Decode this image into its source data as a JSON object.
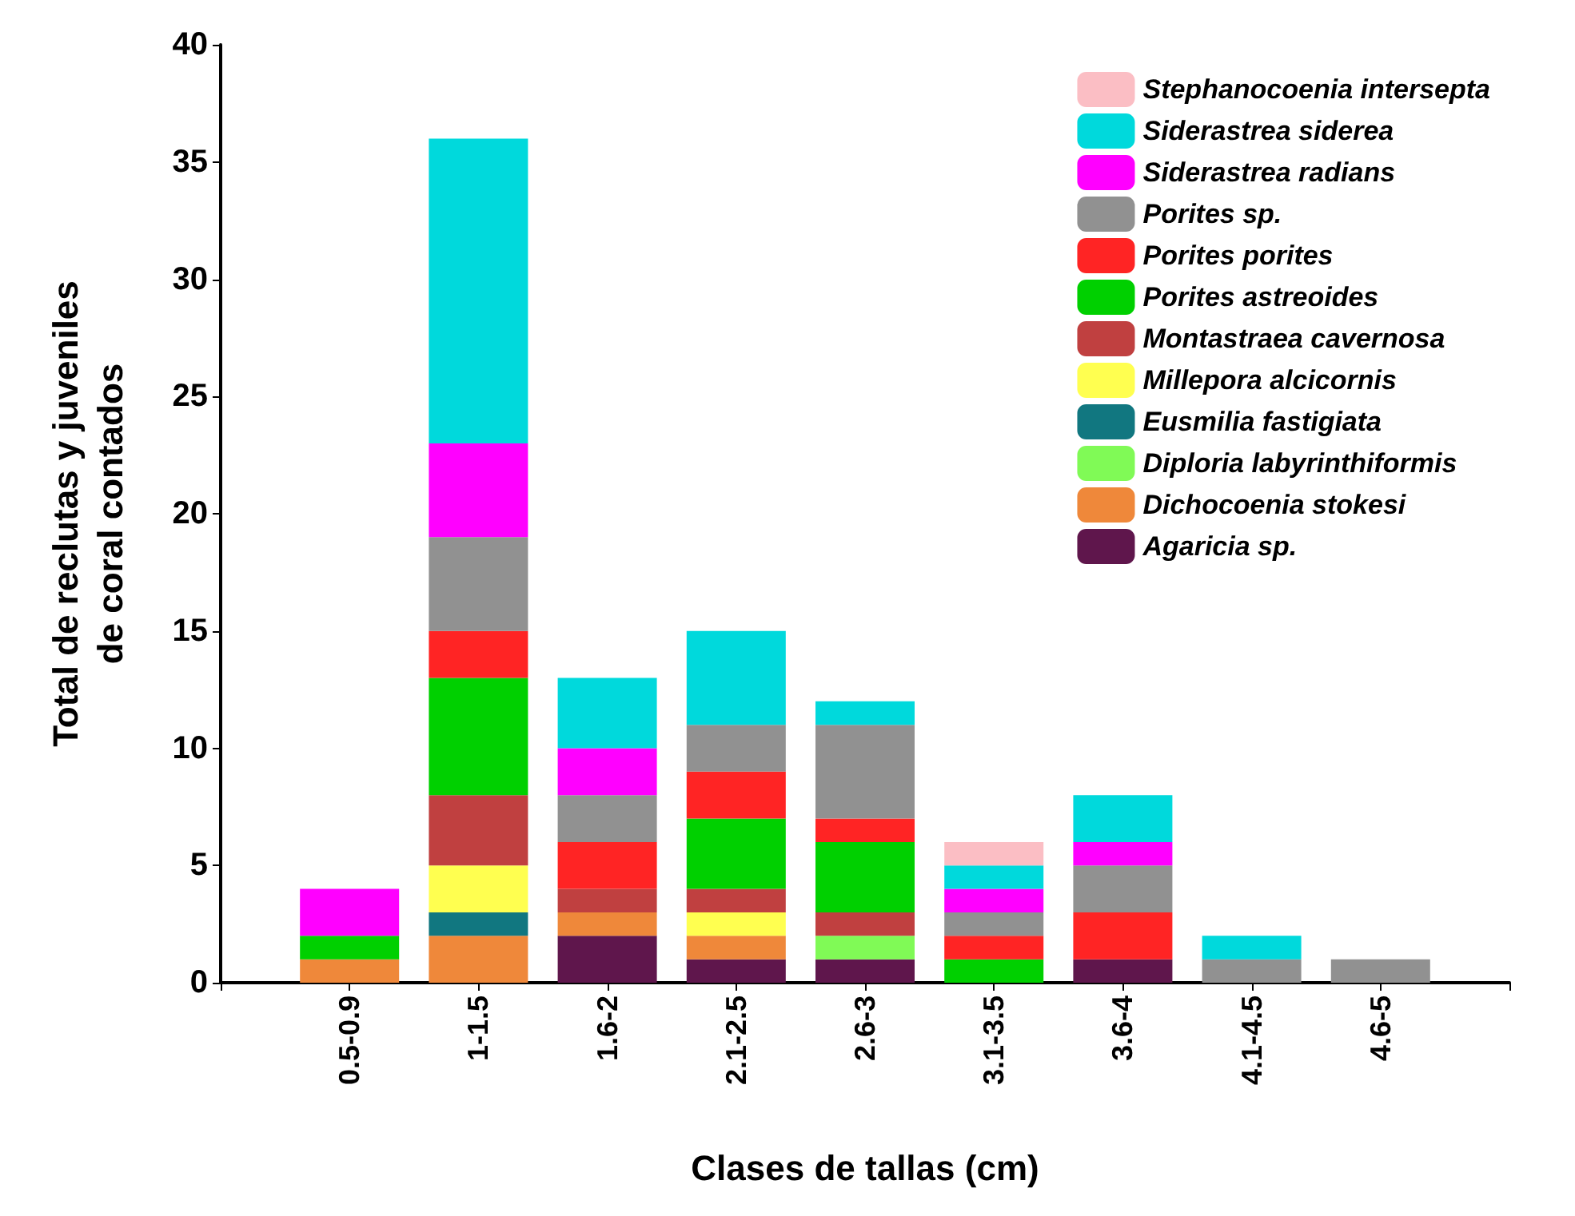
{
  "chart_data": {
    "type": "bar",
    "stacked": true,
    "xlabel": "Clases de tallas (cm)",
    "ylabel": "Total de reclutas y juveniles\nde coral contados",
    "categories": [
      null,
      "0.5-0.9",
      "1-1.5",
      "1.6-2",
      "2.1-2.5",
      "2.6-3",
      "3.1-3.5",
      "3.6-4",
      "4.1-4.5",
      "4.6-5",
      null
    ],
    "ylim": [
      0,
      40
    ],
    "yticks": [
      0,
      5,
      10,
      15,
      20,
      25,
      30,
      35,
      40
    ],
    "grid": false,
    "legend": "top right",
    "series": [
      {
        "name": "Agaricia sp.",
        "color": "#5f164c",
        "values": [
          null,
          null,
          null,
          2,
          1,
          1,
          null,
          1,
          null,
          null,
          null
        ]
      },
      {
        "name": "Dichocoenia stokesi",
        "color": "#ef883a",
        "values": [
          null,
          1,
          2,
          1,
          1,
          null,
          null,
          null,
          null,
          null,
          null
        ]
      },
      {
        "name": "Diploria labyrinthiformis",
        "color": "#80fa56",
        "values": [
          null,
          null,
          null,
          null,
          null,
          1,
          null,
          null,
          null,
          null,
          null
        ]
      },
      {
        "name": "Eusmilia fastigiata",
        "color": "#117780",
        "values": [
          null,
          null,
          1,
          null,
          null,
          null,
          null,
          null,
          null,
          null,
          null
        ]
      },
      {
        "name": "Millepora alcicornis",
        "color": "#ffff50",
        "values": [
          null,
          null,
          2,
          null,
          1,
          null,
          null,
          null,
          null,
          null,
          null
        ]
      },
      {
        "name": "Montastraea cavernosa",
        "color": "#c04040",
        "values": [
          null,
          null,
          3,
          1,
          1,
          1,
          null,
          null,
          null,
          null,
          null
        ]
      },
      {
        "name": "Porites astreoides",
        "color": "#00d000",
        "values": [
          null,
          1,
          5,
          null,
          3,
          3,
          1,
          null,
          null,
          null,
          null
        ]
      },
      {
        "name": "Porites porites",
        "color": "#ff2424",
        "values": [
          null,
          null,
          2,
          2,
          2,
          1,
          1,
          2,
          null,
          null,
          null
        ]
      },
      {
        "name": "Porites sp.",
        "color": "#919191",
        "values": [
          null,
          null,
          4,
          2,
          2,
          4,
          1,
          2,
          1,
          1,
          null
        ]
      },
      {
        "name": "Siderastrea radians",
        "color": "#ff00ff",
        "values": [
          null,
          2,
          4,
          2,
          null,
          null,
          1,
          1,
          null,
          null,
          null
        ]
      },
      {
        "name": "Siderastrea siderea",
        "color": "#00d9dc",
        "values": [
          null,
          null,
          13,
          3,
          4,
          1,
          1,
          2,
          1,
          null,
          null
        ]
      },
      {
        "name": "Stephanocoenia intersepta",
        "color": "#fbbec4",
        "values": [
          null,
          null,
          null,
          null,
          null,
          null,
          1,
          null,
          null,
          null,
          null
        ]
      }
    ]
  }
}
